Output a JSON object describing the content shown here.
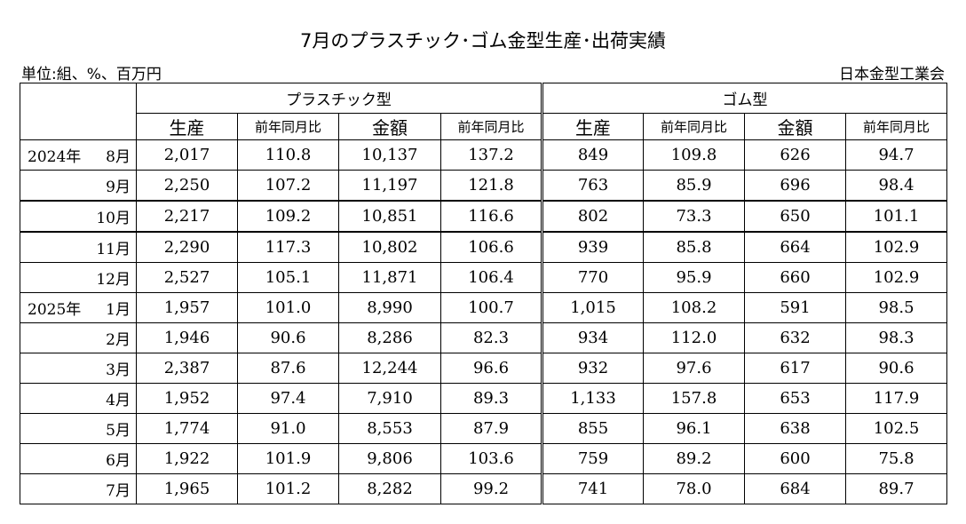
{
  "title": "7月のプラスチック･ゴム金型生産･出荷実績",
  "unit_label": "単位:組、%、百万円",
  "organization": "日本金型工業会",
  "table": {
    "groups": [
      "プラスチック型",
      "ゴム型"
    ],
    "subheaders": [
      "生産",
      "前年同月比",
      "金額",
      "前年同月比",
      "生産",
      "前年同月比",
      "金額",
      "前年同月比"
    ],
    "rows": [
      {
        "year": "2024年",
        "month": "8月",
        "values": [
          "2,017",
          "110.8",
          "10,137",
          "137.2",
          "849",
          "109.8",
          "626",
          "94.7"
        ]
      },
      {
        "year": "",
        "month": "9月",
        "values": [
          "2,250",
          "107.2",
          "11,197",
          "121.8",
          "763",
          "85.9",
          "696",
          "98.4"
        ]
      },
      {
        "year": "",
        "month": "10月",
        "values": [
          "2,217",
          "109.2",
          "10,851",
          "116.6",
          "802",
          "73.3",
          "650",
          "101.1"
        ]
      },
      {
        "year": "",
        "month": "11月",
        "values": [
          "2,290",
          "117.3",
          "10,802",
          "106.6",
          "939",
          "85.8",
          "664",
          "102.9"
        ]
      },
      {
        "year": "",
        "month": "12月",
        "values": [
          "2,527",
          "105.1",
          "11,871",
          "106.4",
          "770",
          "95.9",
          "660",
          "102.9"
        ]
      },
      {
        "year": "2025年",
        "month": "1月",
        "values": [
          "1,957",
          "101.0",
          "8,990",
          "100.7",
          "1,015",
          "108.2",
          "591",
          "98.5"
        ]
      },
      {
        "year": "",
        "month": "2月",
        "values": [
          "1,946",
          "90.6",
          "8,286",
          "82.3",
          "934",
          "112.0",
          "632",
          "98.3"
        ]
      },
      {
        "year": "",
        "month": "3月",
        "values": [
          "2,387",
          "87.6",
          "12,244",
          "96.6",
          "932",
          "97.6",
          "617",
          "90.6"
        ]
      },
      {
        "year": "",
        "month": "4月",
        "values": [
          "1,952",
          "97.4",
          "7,910",
          "89.3",
          "1,133",
          "157.8",
          "653",
          "117.9"
        ]
      },
      {
        "year": "",
        "month": "5月",
        "values": [
          "1,774",
          "91.0",
          "8,553",
          "87.9",
          "855",
          "96.1",
          "638",
          "102.5"
        ]
      },
      {
        "year": "",
        "month": "6月",
        "values": [
          "1,922",
          "101.9",
          "9,806",
          "103.6",
          "759",
          "89.2",
          "600",
          "75.8"
        ]
      },
      {
        "year": "",
        "month": "7月",
        "values": [
          "1,965",
          "101.2",
          "8,282",
          "99.2",
          "741",
          "78.0",
          "684",
          "89.7"
        ]
      }
    ]
  }
}
